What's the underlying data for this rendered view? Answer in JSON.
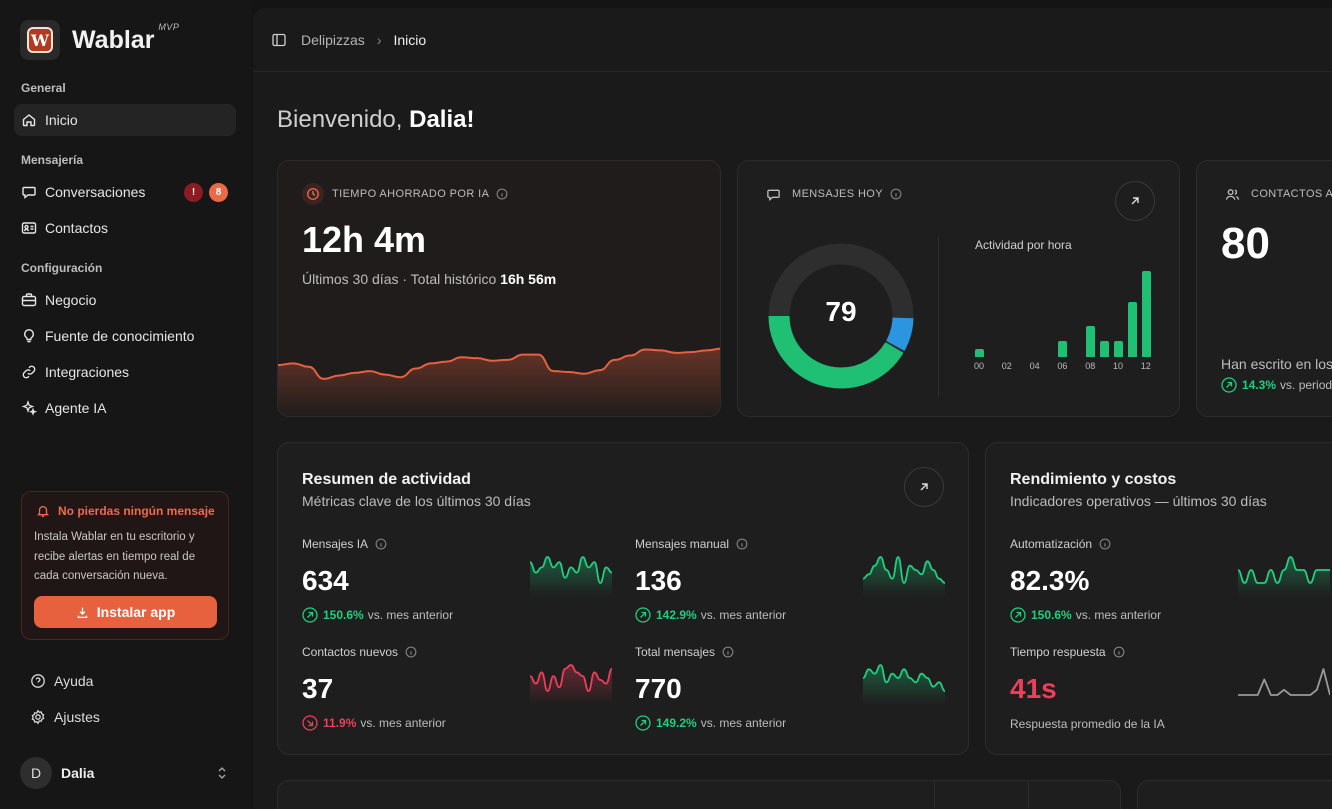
{
  "brand": {
    "name": "Wablar",
    "tag": "MVP",
    "logo_letter": "W"
  },
  "sidebar": {
    "sections": [
      {
        "label": "General"
      },
      {
        "label": "Mensajería"
      },
      {
        "label": "Configuración"
      }
    ],
    "items": [
      {
        "label": "Inicio",
        "icon": "home-icon",
        "active": true
      },
      {
        "label": "Conversaciones",
        "icon": "chat-icon",
        "badge_alert": "!",
        "badge_count": "8"
      },
      {
        "label": "Contactos",
        "icon": "contact-card-icon"
      },
      {
        "label": "Negocio",
        "icon": "briefcase-icon"
      },
      {
        "label": "Fuente de conocimiento",
        "icon": "lightbulb-icon"
      },
      {
        "label": "Integraciones",
        "icon": "link-icon"
      },
      {
        "label": "Agente IA",
        "icon": "sparkles-icon"
      }
    ],
    "promo": {
      "title": "No pierdas ningún mensaje",
      "text": "Instala Wablar en tu escritorio y recibe alertas en tiempo real de cada conversación nueva.",
      "button": "Instalar app"
    },
    "footer": [
      {
        "label": "Ayuda",
        "icon": "help-icon"
      },
      {
        "label": "Ajustes",
        "icon": "gear-icon"
      }
    ],
    "user": {
      "initial": "D",
      "name": "Dalia"
    }
  },
  "breadcrumb": {
    "parent": "Delipizzas",
    "current": "Inicio"
  },
  "welcome": {
    "greeting": "Bienvenido,",
    "name": "Dalia!"
  },
  "time_saved": {
    "label": "TIEMPO AHORRADO POR IA",
    "value": "12h 4m",
    "sub_prefix": "Últimos 30 días · Total histórico",
    "sub_value": "16h 56m",
    "trend": [
      38,
      40,
      36,
      22,
      26,
      29,
      31,
      27,
      24,
      34,
      40,
      42,
      47,
      46,
      43,
      44,
      50,
      50,
      31,
      30,
      28,
      32,
      44,
      49,
      56,
      55,
      52,
      53,
      55,
      57
    ]
  },
  "messages_today": {
    "label": "MENSAJES HOY",
    "value": "79",
    "donut": {
      "segments": [
        {
          "name": "IA",
          "fraction": 0.42,
          "color": "#1fbf74"
        },
        {
          "name": "Manual",
          "fraction": 0.08,
          "color": "#2b95e0"
        }
      ]
    },
    "chart_data": {
      "type": "bar",
      "title": "Actividad por hora",
      "x": [
        0,
        1,
        2,
        3,
        4,
        5,
        6,
        7,
        8,
        9,
        10,
        11,
        12
      ],
      "tick_labels": [
        "00",
        "02",
        "04",
        "06",
        "08",
        "10",
        "12"
      ],
      "values": [
        1,
        0,
        0,
        0,
        0,
        0,
        2,
        0,
        4,
        2,
        2,
        7,
        11
      ]
    }
  },
  "contacts": {
    "label": "CONTACTOS A",
    "value": "80",
    "sub": "Han escrito en los",
    "delta_pct": "14.3%",
    "delta_text": "vs. periodo"
  },
  "activity": {
    "title": "Resumen de actividad",
    "subtitle": "Métricas clave de los últimos 30 días",
    "metrics": [
      {
        "label": "Mensajes IA",
        "value": "634",
        "pct": "150.6%",
        "dir": "up",
        "suffix": "vs. mes anterior",
        "color": "#1fcf7e",
        "spark": [
          5,
          3,
          4,
          6,
          4,
          5,
          2,
          4,
          3,
          6,
          4,
          5,
          1,
          4,
          3
        ]
      },
      {
        "label": "Mensajes manual",
        "value": "136",
        "pct": "142.9%",
        "dir": "up",
        "suffix": "vs. mes anterior",
        "color": "#1fcf7e",
        "spark": [
          2,
          3,
          5,
          7,
          4,
          2,
          7,
          1,
          5,
          4,
          3,
          6,
          4,
          2,
          1
        ]
      },
      {
        "label": "Contactos nuevos",
        "value": "37",
        "pct": "11.9%",
        "dir": "down",
        "suffix": "vs. mes anterior",
        "color": "#ee3e5a",
        "spark": [
          5,
          3,
          6,
          1,
          5,
          2,
          7,
          8,
          6,
          5,
          1,
          6,
          4,
          3,
          7
        ]
      },
      {
        "label": "Total mensajes",
        "value": "770",
        "pct": "149.2%",
        "dir": "up",
        "suffix": "vs. mes anterior",
        "color": "#1fcf7e",
        "spark": [
          4,
          6,
          5,
          7,
          3,
          5,
          4,
          6,
          4,
          3,
          5,
          4,
          2,
          3,
          1
        ]
      }
    ]
  },
  "performance": {
    "title": "Rendimiento y costos",
    "subtitle": "Indicadores operativos — últimos 30 días",
    "automation": {
      "label": "Automatización",
      "value": "82.3%",
      "pct": "150.6%",
      "suffix": "vs. mes anterior",
      "spark": [
        3,
        2,
        3,
        2,
        2,
        3,
        2,
        3,
        4,
        3,
        3,
        2,
        3,
        3,
        3
      ]
    },
    "response": {
      "label": "Tiempo respuesta",
      "value": "41s",
      "note": "Respuesta promedio de la IA",
      "spark": [
        1,
        1,
        1,
        1,
        4,
        1,
        1,
        2,
        1,
        1,
        1,
        1,
        2,
        6,
        1
      ]
    }
  }
}
